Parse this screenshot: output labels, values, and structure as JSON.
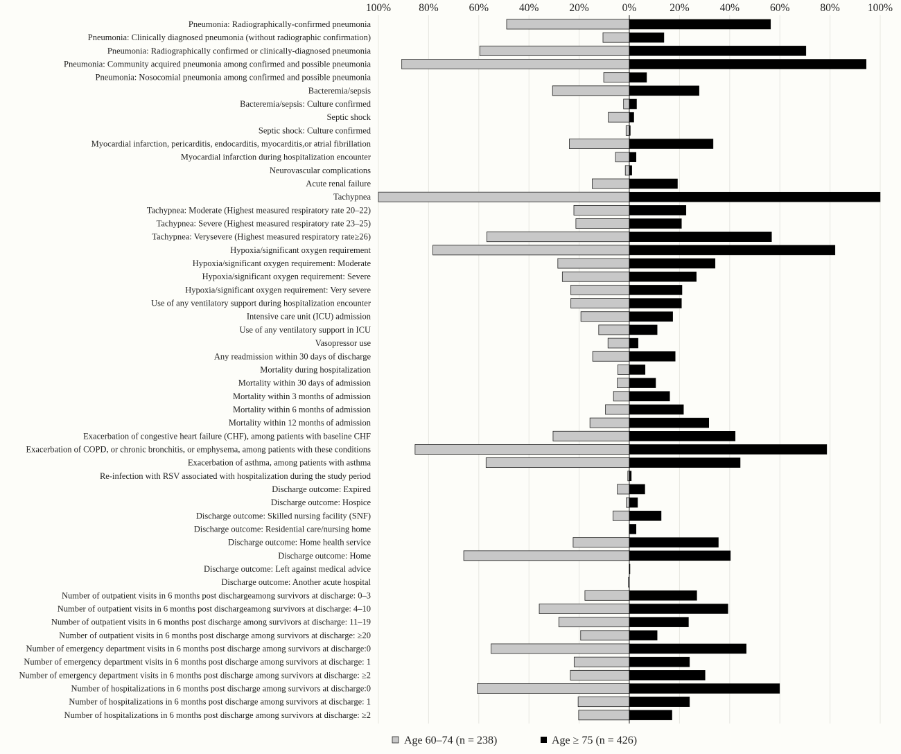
{
  "chart_data": {
    "type": "bar",
    "orientation": "horizontal",
    "layout": "diverging",
    "grid": true,
    "legend_position": "bottom-center",
    "xlim": [
      -100,
      100
    ],
    "x_ticks": [
      {
        "value": -100,
        "label": "100%"
      },
      {
        "value": -80,
        "label": "80%"
      },
      {
        "value": -60,
        "label": "60%"
      },
      {
        "value": -40,
        "label": "40%"
      },
      {
        "value": -20,
        "label": "20%"
      },
      {
        "value": 0,
        "label": "0%"
      },
      {
        "value": 20,
        "label": "20%"
      },
      {
        "value": 40,
        "label": "40%"
      },
      {
        "value": 60,
        "label": "60%"
      },
      {
        "value": 80,
        "label": "80%"
      },
      {
        "value": 100,
        "label": "100%"
      }
    ],
    "categories": [
      "Pneumonia: Radiographically-confirmed pneumonia",
      "Pneumonia: Clinically diagnosed pneumonia (without radiographic confirmation)",
      "Pneumonia: Radiographically confirmed or clinically-diagnosed pneumonia",
      "Pneumonia: Community acquired pneumonia among confirmed and possible pneumonia",
      "Pneumonia: Nosocomial pneumonia among confirmed and possible pneumonia",
      "Bacteremia/sepsis",
      "Bacteremia/sepsis: Culture confirmed",
      "Septic shock",
      "Septic shock: Culture confirmed",
      "Myocardial infarction, pericarditis, endocarditis, myocarditis,or atrial fibrillation",
      "Myocardial infarction during hospitalization encounter",
      "Neurovascular complications",
      "Acute renal failure",
      "Tachypnea",
      "Tachypnea: Moderate (Highest measured respiratory rate 20–22)",
      "Tachypnea: Severe (Highest measured respiratory rate 23–25)",
      "Tachypnea: Verysevere (Highest measured respiratory rate≥26)",
      "Hypoxia/significant oxygen requirement",
      "Hypoxia/significant oxygen requirement: Moderate",
      "Hypoxia/significant oxygen requirement: Severe",
      "Hypoxia/significant oxygen requirement: Very severe",
      "Use of any ventilatory support during hospitalization encounter",
      "Intensive care unit (ICU) admission",
      "Use of any ventilatory support in ICU",
      "Vasopressor use",
      "Any readmission within 30 days of discharge",
      "Mortality during hospitalization",
      "Mortality within 30 days of admission",
      "Mortality within 3 months of admission",
      "Mortality within 6 months of admission",
      "Mortality within 12 months of admission",
      "Exacerbation of congestive heart failure (CHF), among patients with baseline CHF",
      "Exacerbation of COPD, or chronic bronchitis, or emphysema, among patients with these conditions",
      "Exacerbation of asthma, among patients with asthma",
      "Re-infection with RSV associated with hospitalization during the study period",
      "Discharge outcome: Expired",
      "Discharge outcome: Hospice",
      "Discharge outcome: Skilled nursing facility (SNF)",
      "Discharge outcome: Residential care/nursing home",
      "Discharge outcome: Home health service",
      "Discharge outcome: Home",
      "Discharge outcome: Left against medical advice",
      "Discharge outcome: Another acute hospital",
      "Number of outpatient visits in 6 months post dischargeamong survivors at discharge: 0–3",
      "Number of outpatient visits in 6 months post dischargeamong survivors at discharge: 4–10",
      "Number of outpatient visits in 6 months post discharge among survivors at discharge: 11–19",
      "Number of outpatient visits in 6 months post discharge among survivors at discharge: ≥20",
      "Number of emergency department visits in 6 months post discharge among survivors at discharge:0",
      "Number of emergency department visits in 6 months post discharge among survivors at discharge: 1",
      "Number of emergency department visits in 6 months post discharge among survivors at discharge: ≥2",
      "Number of hospitalizations in 6 months post discharge among survivors at discharge:0",
      "Number of hospitalizations in 6 months post discharge among survivors at discharge: 1",
      "Number of hospitalizations in 6 months post discharge among survivors at discharge: ≥2"
    ],
    "series": [
      {
        "name": "Age 60–74 (n = 238)",
        "color": "#c8c8c8",
        "direction": "left",
        "values": [
          48.9,
          10.5,
          59.6,
          90.7,
          10.2,
          30.6,
          2.3,
          8.4,
          1.3,
          23.9,
          5.5,
          1.6,
          14.8,
          100,
          22.1,
          21.3,
          56.8,
          78.3,
          28.5,
          26.7,
          23.3,
          23.3,
          19.3,
          12.2,
          8.5,
          14.6,
          4.6,
          4.8,
          6.3,
          9.5,
          15.7,
          30.4,
          85.4,
          57.1,
          0.6,
          4.8,
          1.2,
          6.5,
          0,
          22.4,
          66.0,
          0,
          0.4,
          17.7,
          35.9,
          28.1,
          19.4,
          55.1,
          22.0,
          23.5,
          60.6,
          20.4,
          20.2
        ]
      },
      {
        "name": "Age ≥ 75 (n = 426)",
        "color": "#000000",
        "direction": "right",
        "values": [
          56.3,
          13.8,
          70.4,
          94.4,
          6.9,
          27.8,
          2.9,
          1.8,
          0.4,
          33.4,
          2.7,
          1.0,
          19.2,
          100,
          22.6,
          20.8,
          56.7,
          82.0,
          34.2,
          26.7,
          21.0,
          20.8,
          17.3,
          11.1,
          3.5,
          18.3,
          6.3,
          10.5,
          16.1,
          21.6,
          31.7,
          42.2,
          78.7,
          44.2,
          0.8,
          6.2,
          3.3,
          12.7,
          2.7,
          35.5,
          40.3,
          0.2,
          0,
          26.9,
          39.3,
          23.6,
          11.1,
          46.6,
          24.0,
          30.2,
          59.9,
          24.0,
          17.0
        ]
      }
    ]
  }
}
